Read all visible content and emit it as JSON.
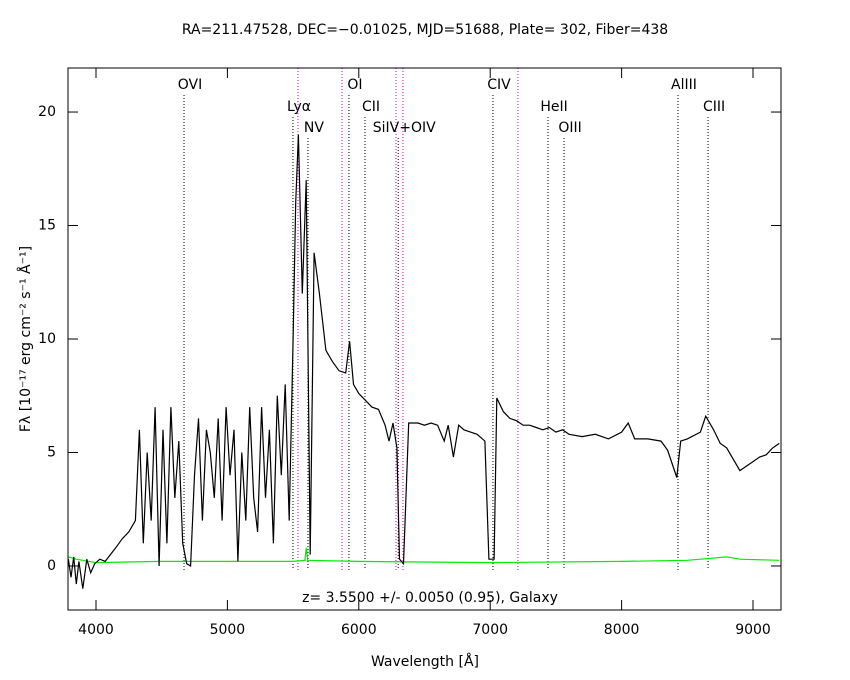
{
  "chart_data": {
    "type": "line",
    "title": "RA=211.47528, DEC=−0.01025, MJD=51688, Plate= 302, Fiber=438",
    "x_label": "Wavelength [Å]",
    "y_label": "Fλ [10⁻¹⁷ erg cm⁻² s⁻¹ Å⁻¹]",
    "annotation": "z= 3.5500 +/- 0.0050 (0.95), Galaxy",
    "xlim": [
      3787,
      9213
    ],
    "ylim": [
      -1.94,
      21.94
    ],
    "xticks": [
      4000,
      5000,
      6000,
      7000,
      8000,
      9000
    ],
    "yticks": [
      0,
      5,
      10,
      15,
      20
    ],
    "lines": [
      {
        "wavelength": 4670,
        "label": "OVI",
        "color": "#000000"
      },
      {
        "wavelength": 5499,
        "label": "Lyα",
        "color": "#000000"
      },
      {
        "wavelength": 5537,
        "label": null,
        "color": "#cc00cc"
      },
      {
        "wavelength": 5613,
        "label": "NV",
        "color": "#000000"
      },
      {
        "wavelength": 5872,
        "label": null,
        "color": "#cc00cc"
      },
      {
        "wavelength": 5925,
        "label": "OI",
        "color": "#000000"
      },
      {
        "wavelength": 6047,
        "label": "CII",
        "color": "#000000"
      },
      {
        "wavelength": 6283,
        "label": null,
        "color": "#cc00cc"
      },
      {
        "wavelength": 6300,
        "label": "SiIV+OIV",
        "color": "#000000"
      },
      {
        "wavelength": 6336,
        "label": null,
        "color": "#cc00cc"
      },
      {
        "wavelength": 7021,
        "label": "CIV",
        "color": "#000000"
      },
      {
        "wavelength": 7211,
        "label": null,
        "color": "#cc00cc"
      },
      {
        "wavelength": 7440,
        "label": "HeII",
        "color": "#000000"
      },
      {
        "wavelength": 7562,
        "label": "OIII",
        "color": "#000000"
      },
      {
        "wavelength": 8429,
        "label": "AlIII",
        "color": "#000000"
      },
      {
        "wavelength": 8658,
        "label": "CIII",
        "color": "#000000"
      }
    ],
    "series": [
      {
        "name": "flux",
        "color": "#000000",
        "x": [
          3790,
          3810,
          3830,
          3850,
          3870,
          3900,
          3930,
          3960,
          3990,
          4030,
          4070,
          4110,
          4150,
          4200,
          4250,
          4300,
          4330,
          4360,
          4390,
          4420,
          4450,
          4480,
          4510,
          4540,
          4570,
          4600,
          4630,
          4660,
          4690,
          4720,
          4750,
          4780,
          4810,
          4840,
          4870,
          4900,
          4930,
          4960,
          4990,
          5020,
          5050,
          5080,
          5110,
          5140,
          5170,
          5200,
          5230,
          5260,
          5290,
          5320,
          5350,
          5380,
          5410,
          5440,
          5470,
          5500,
          5520,
          5540,
          5570,
          5600,
          5630,
          5660,
          5700,
          5750,
          5800,
          5850,
          5900,
          5930,
          5960,
          6000,
          6050,
          6100,
          6150,
          6200,
          6230,
          6260,
          6290,
          6310,
          6340,
          6380,
          6450,
          6500,
          6550,
          6600,
          6650,
          6680,
          6720,
          6760,
          6800,
          6850,
          6900,
          6960,
          6990,
          7030,
          7050,
          7100,
          7150,
          7200,
          7250,
          7300,
          7350,
          7400,
          7450,
          7500,
          7550,
          7600,
          7700,
          7800,
          7900,
          8000,
          8050,
          8100,
          8200,
          8300,
          8350,
          8420,
          8450,
          8500,
          8600,
          8640,
          8700,
          8750,
          8800,
          8850,
          8900,
          8950,
          9000,
          9050,
          9100,
          9150,
          9200
        ],
        "values": [
          0.3,
          -0.5,
          0.4,
          -0.8,
          0.2,
          -1,
          0.3,
          -0.3,
          0.1,
          0.3,
          0.2,
          0.5,
          0.8,
          1.2,
          1.5,
          2,
          6,
          1,
          5,
          2,
          7,
          0,
          6,
          1,
          7,
          3,
          5.5,
          1,
          0.1,
          0,
          4,
          6.5,
          2,
          6,
          5,
          3,
          6.5,
          2,
          7,
          4,
          6,
          0.2,
          5,
          2,
          7,
          3,
          1.5,
          7,
          3,
          6,
          1,
          7.5,
          4,
          8,
          2,
          10,
          16,
          19,
          12,
          17,
          0.5,
          13.8,
          12,
          9.5,
          9,
          8.6,
          8.5,
          9.9,
          8,
          7.6,
          7.3,
          7,
          6.9,
          6.2,
          5.5,
          6.3,
          5.2,
          0.3,
          0.1,
          6.3,
          6.3,
          6.2,
          6.3,
          6.2,
          5.5,
          6.2,
          4.8,
          6.2,
          6,
          5.9,
          5.8,
          5.5,
          0.3,
          0.3,
          7.4,
          6.8,
          6.5,
          6.4,
          6.2,
          6.2,
          6.1,
          6,
          6.1,
          5.9,
          6,
          5.8,
          5.7,
          5.8,
          5.6,
          5.9,
          6.3,
          5.6,
          5.6,
          5.5,
          5.1,
          3.9,
          5.5,
          5.6,
          5.9,
          6.6,
          6,
          5.4,
          5.2,
          4.7,
          4.2,
          4.4,
          4.6,
          4.8,
          4.9,
          5.2,
          5.4
        ]
      },
      {
        "name": "error",
        "color": "#00ee00",
        "x": [
          3790,
          3850,
          4000,
          4500,
          5000,
          5500,
          5590,
          5600,
          5610,
          6000,
          7000,
          8000,
          8500,
          8800,
          8900,
          9200
        ],
        "values": [
          0.4,
          0.3,
          0.15,
          0.2,
          0.2,
          0.2,
          0.25,
          0.8,
          0.25,
          0.2,
          0.15,
          0.2,
          0.25,
          0.4,
          0.3,
          0.25
        ]
      }
    ]
  }
}
